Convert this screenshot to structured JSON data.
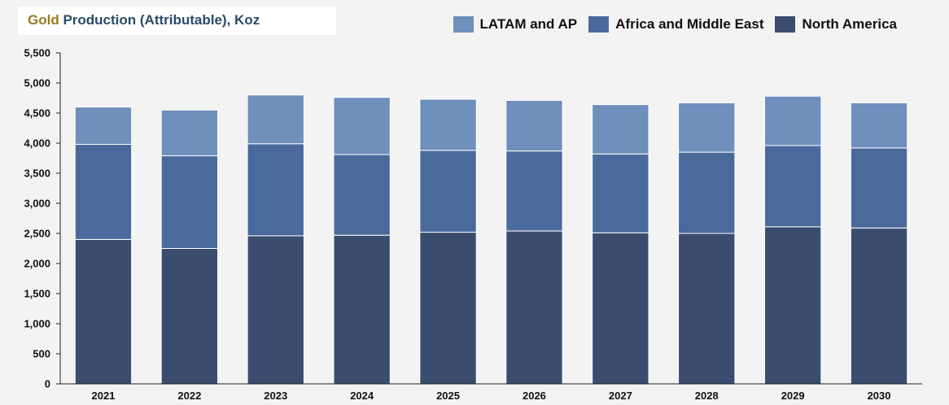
{
  "header": {
    "title_gold": "Gold",
    "title_rest": " Production (Attributable), Koz"
  },
  "legend": [
    {
      "label": "LATAM and AP",
      "color": "#6f8fbc"
    },
    {
      "label": "Africa and Middle East",
      "color": "#4a6a9c"
    },
    {
      "label": "North America",
      "color": "#3a4d6e"
    }
  ],
  "chart_data": {
    "type": "bar",
    "stacked": true,
    "title": "Gold Production (Attributable), Koz",
    "categories": [
      "2021",
      "2022",
      "2023",
      "2024",
      "2025",
      "2026",
      "2027",
      "2028",
      "2029",
      "2030"
    ],
    "series": [
      {
        "name": "North America",
        "color": "#3a4d6e",
        "values": [
          2400,
          2250,
          2460,
          2470,
          2520,
          2540,
          2510,
          2500,
          2610,
          2590
        ]
      },
      {
        "name": "Africa and Middle East",
        "color": "#4a6a9c",
        "values": [
          1580,
          1540,
          1530,
          1340,
          1360,
          1330,
          1310,
          1350,
          1350,
          1330
        ]
      },
      {
        "name": "LATAM and AP",
        "color": "#6f8fbc",
        "values": [
          620,
          760,
          810,
          950,
          850,
          840,
          820,
          820,
          820,
          750
        ]
      }
    ],
    "ylim": [
      0,
      5500
    ],
    "yticks": [
      0,
      500,
      1000,
      1500,
      2000,
      2500,
      3000,
      3500,
      4000,
      4500,
      5000,
      5500
    ],
    "ytick_labels": [
      "0",
      "500",
      "1,000",
      "1,500",
      "2,000",
      "2,500",
      "3,000",
      "3,500",
      "4,000",
      "4,500",
      "5,000",
      "5,500"
    ],
    "grid": false,
    "legend_position": "top-right"
  }
}
